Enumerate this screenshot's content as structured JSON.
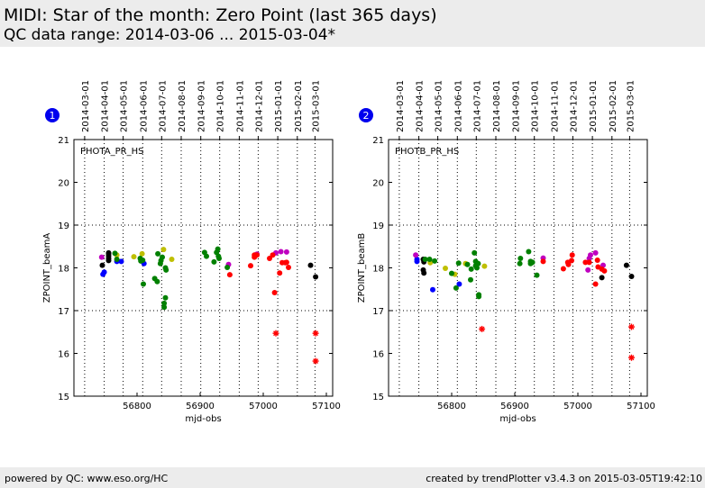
{
  "page": {
    "title": "MIDI: Star of the month: Zero Point (last 365 days)",
    "subtitle": "QC data range: 2014-03-06 ... 2015-03-04*",
    "footer_left": "powered by QC: www.eso.org/HC",
    "footer_right": "created by trendPlotter v3.4.3 on 2015-03-05T19:42:10"
  },
  "chart_data": [
    {
      "type": "scatter",
      "badge": "1",
      "panel_label": "PHOTA_PR_HS",
      "xlabel": "mjd-obs",
      "ylabel": "ZPOINT_beamA",
      "xlim": [
        56700,
        57110
      ],
      "ylim": [
        15,
        21
      ],
      "x_ticks": [
        56800,
        56900,
        57000,
        57100
      ],
      "y_ticks": [
        15,
        16,
        17,
        18,
        19,
        20,
        21
      ],
      "y_dotted_lines": [
        19,
        17
      ],
      "top_axis_dates": [
        {
          "label": "2014-03-01",
          "mjd": 56717
        },
        {
          "label": "2014-04-01",
          "mjd": 56748
        },
        {
          "label": "2014-05-01",
          "mjd": 56778
        },
        {
          "label": "2014-06-01",
          "mjd": 56809
        },
        {
          "label": "2014-07-01",
          "mjd": 56839
        },
        {
          "label": "2014-08-01",
          "mjd": 56870
        },
        {
          "label": "2014-09-01",
          "mjd": 56901
        },
        {
          "label": "2014-10-01",
          "mjd": 56931
        },
        {
          "label": "2014-11-01",
          "mjd": 56962
        },
        {
          "label": "2014-12-01",
          "mjd": 56992
        },
        {
          "label": "2015-01-01",
          "mjd": 57023
        },
        {
          "label": "2015-02-01",
          "mjd": 57054
        },
        {
          "label": "2015-03-01",
          "mjd": 57082
        }
      ],
      "series": [
        {
          "color": "#000000",
          "marker": "circle",
          "points": [
            [
              56745,
              18.06
            ],
            [
              56755,
              18.17
            ],
            [
              56755,
              18.22
            ],
            [
              56755,
              18.28
            ],
            [
              56755,
              18.33
            ],
            [
              56755,
              18.35
            ],
            [
              57075,
              18.06
            ],
            [
              57083,
              17.79
            ]
          ]
        },
        {
          "color": "#0000ff",
          "marker": "circle",
          "points": [
            [
              56746,
              17.85
            ],
            [
              56748,
              17.9
            ],
            [
              56768,
              18.15
            ],
            [
              56775,
              18.15
            ],
            [
              56811,
              18.1
            ]
          ]
        },
        {
          "color": "#bf00bf",
          "marker": "circle",
          "points": [
            [
              56744,
              18.25
            ],
            [
              56945,
              18.08
            ],
            [
              56990,
              18.32
            ],
            [
              57020,
              18.35
            ],
            [
              57028,
              18.38
            ],
            [
              57037,
              18.37
            ]
          ]
        },
        {
          "color": "#bfbf00",
          "marker": "circle",
          "points": [
            [
              56768,
              18.3
            ],
            [
              56795,
              18.26
            ],
            [
              56808,
              18.33
            ],
            [
              56842,
              18.43
            ],
            [
              56855,
              18.2
            ]
          ]
        },
        {
          "color": "#008000",
          "marker": "circle",
          "points": [
            [
              56765,
              18.34
            ],
            [
              56768,
              18.2
            ],
            [
              56805,
              18.22
            ],
            [
              56806,
              18.16
            ],
            [
              56809,
              18.18
            ],
            [
              56810,
              17.62
            ],
            [
              56828,
              17.75
            ],
            [
              56832,
              17.68
            ],
            [
              56833,
              18.33
            ],
            [
              56837,
              18.1
            ],
            [
              56838,
              18.17
            ],
            [
              56840,
              18.25
            ],
            [
              56845,
              18.0
            ],
            [
              56846,
              17.95
            ],
            [
              56845,
              17.3
            ],
            [
              56843,
              17.17
            ],
            [
              56843,
              17.08
            ],
            [
              56907,
              18.36
            ],
            [
              56910,
              18.27
            ],
            [
              56922,
              18.14
            ],
            [
              56926,
              18.36
            ],
            [
              56928,
              18.44
            ],
            [
              56929,
              18.27
            ],
            [
              56930,
              18.22
            ],
            [
              56943,
              18.01
            ]
          ]
        },
        {
          "color": "#ff0000",
          "marker": "circle",
          "points": [
            [
              56947,
              17.84
            ],
            [
              56980,
              18.05
            ],
            [
              56986,
              18.25
            ],
            [
              56986,
              18.3
            ],
            [
              56990,
              18.3
            ],
            [
              57010,
              18.22
            ],
            [
              57015,
              18.3
            ],
            [
              57018,
              17.42
            ],
            [
              57026,
              17.88
            ],
            [
              57030,
              18.12
            ],
            [
              57035,
              18.12
            ],
            [
              57037,
              18.13
            ],
            [
              57040,
              18.01
            ]
          ]
        },
        {
          "color": "#ff0000",
          "marker": "star",
          "points": [
            [
              57020,
              16.47
            ],
            [
              57083,
              16.47
            ],
            [
              57083,
              15.82
            ]
          ]
        }
      ]
    },
    {
      "type": "scatter",
      "badge": "2",
      "panel_label": "PHOTB_PR_HS",
      "xlabel": "mjd-obs",
      "ylabel": "ZPOINT_beamB",
      "xlim": [
        56700,
        57110
      ],
      "ylim": [
        15,
        21
      ],
      "x_ticks": [
        56800,
        56900,
        57000,
        57100
      ],
      "y_ticks": [
        15,
        16,
        17,
        18,
        19,
        20,
        21
      ],
      "y_dotted_lines": [
        19,
        17
      ],
      "top_axis_dates": [
        {
          "label": "2014-03-01",
          "mjd": 56717
        },
        {
          "label": "2014-04-01",
          "mjd": 56748
        },
        {
          "label": "2014-05-01",
          "mjd": 56778
        },
        {
          "label": "2014-06-01",
          "mjd": 56809
        },
        {
          "label": "2014-07-01",
          "mjd": 56839
        },
        {
          "label": "2014-08-01",
          "mjd": 56870
        },
        {
          "label": "2014-09-01",
          "mjd": 56901
        },
        {
          "label": "2014-10-01",
          "mjd": 56931
        },
        {
          "label": "2014-11-01",
          "mjd": 56962
        },
        {
          "label": "2014-12-01",
          "mjd": 56992
        },
        {
          "label": "2015-01-01",
          "mjd": 57023
        },
        {
          "label": "2015-02-01",
          "mjd": 57054
        },
        {
          "label": "2015-03-01",
          "mjd": 57082
        }
      ],
      "series": [
        {
          "color": "#000000",
          "marker": "circle",
          "points": [
            [
              56755,
              18.2
            ],
            [
              56756,
              18.14
            ],
            [
              56755,
              17.95
            ],
            [
              56756,
              17.88
            ],
            [
              57077,
              18.06
            ],
            [
              57085,
              17.8
            ],
            [
              57038,
              17.77
            ]
          ]
        },
        {
          "color": "#0000ff",
          "marker": "circle",
          "points": [
            [
              56745,
              18.15
            ],
            [
              56745,
              18.2
            ],
            [
              56770,
              17.49
            ],
            [
              56812,
              17.62
            ]
          ]
        },
        {
          "color": "#bf00bf",
          "marker": "circle",
          "points": [
            [
              56743,
              18.3
            ],
            [
              56945,
              18.23
            ],
            [
              57016,
              17.95
            ],
            [
              57018,
              18.22
            ],
            [
              57020,
              18.3
            ],
            [
              57028,
              18.35
            ],
            [
              57040,
              18.06
            ]
          ]
        },
        {
          "color": "#bfbf00",
          "marker": "circle",
          "points": [
            [
              56766,
              18.12
            ],
            [
              56790,
              17.99
            ],
            [
              56805,
              17.85
            ],
            [
              56822,
              18.1
            ],
            [
              56852,
              18.04
            ]
          ]
        },
        {
          "color": "#008000",
          "marker": "circle",
          "points": [
            [
              56758,
              18.2
            ],
            [
              56765,
              18.2
            ],
            [
              56773,
              18.16
            ],
            [
              56800,
              17.87
            ],
            [
              56807,
              17.53
            ],
            [
              56811,
              18.11
            ],
            [
              56825,
              18.08
            ],
            [
              56830,
              17.72
            ],
            [
              56831,
              17.97
            ],
            [
              56836,
              18.35
            ],
            [
              56838,
              18.05
            ],
            [
              56838,
              18.15
            ],
            [
              56840,
              18.0
            ],
            [
              56842,
              18.1
            ],
            [
              56843,
              17.37
            ],
            [
              56843,
              17.33
            ],
            [
              56908,
              18.1
            ],
            [
              56909,
              18.22
            ],
            [
              56922,
              18.38
            ],
            [
              56925,
              18.1
            ],
            [
              56925,
              18.15
            ],
            [
              56928,
              18.13
            ],
            [
              56935,
              17.83
            ]
          ]
        },
        {
          "color": "#ff0000",
          "marker": "circle",
          "points": [
            [
              56945,
              18.15
            ],
            [
              56977,
              17.98
            ],
            [
              56984,
              18.13
            ],
            [
              56985,
              18.08
            ],
            [
              56990,
              18.17
            ],
            [
              56991,
              18.3
            ],
            [
              57012,
              18.13
            ],
            [
              57018,
              18.13
            ],
            [
              57028,
              17.62
            ],
            [
              57031,
              18.18
            ],
            [
              57032,
              18.02
            ],
            [
              57038,
              17.97
            ],
            [
              57042,
              17.93
            ]
          ]
        },
        {
          "color": "#ff0000",
          "marker": "star",
          "points": [
            [
              56848,
              16.57
            ],
            [
              57085,
              16.62
            ],
            [
              57085,
              15.9
            ]
          ]
        }
      ]
    }
  ]
}
